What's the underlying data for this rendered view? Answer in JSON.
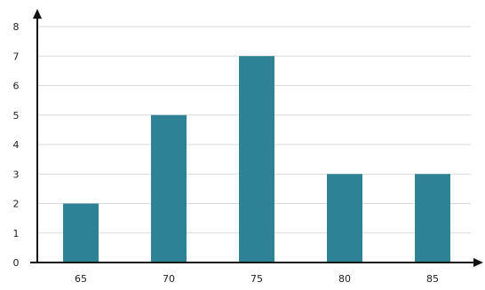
{
  "chart_data": {
    "type": "bar",
    "categories": [
      "65",
      "70",
      "75",
      "80",
      "85"
    ],
    "values": [
      2,
      5,
      7,
      3,
      3
    ],
    "title": "",
    "xlabel": "",
    "ylabel": "",
    "ylim": [
      0,
      8
    ],
    "y_ticks": [
      "0",
      "1",
      "2",
      "3",
      "4",
      "5",
      "6",
      "7",
      "8"
    ],
    "grid": true,
    "legend": "none",
    "bar_color": "#2e8296",
    "axis_color": "#111111",
    "grid_color": "#d9d9d9"
  }
}
